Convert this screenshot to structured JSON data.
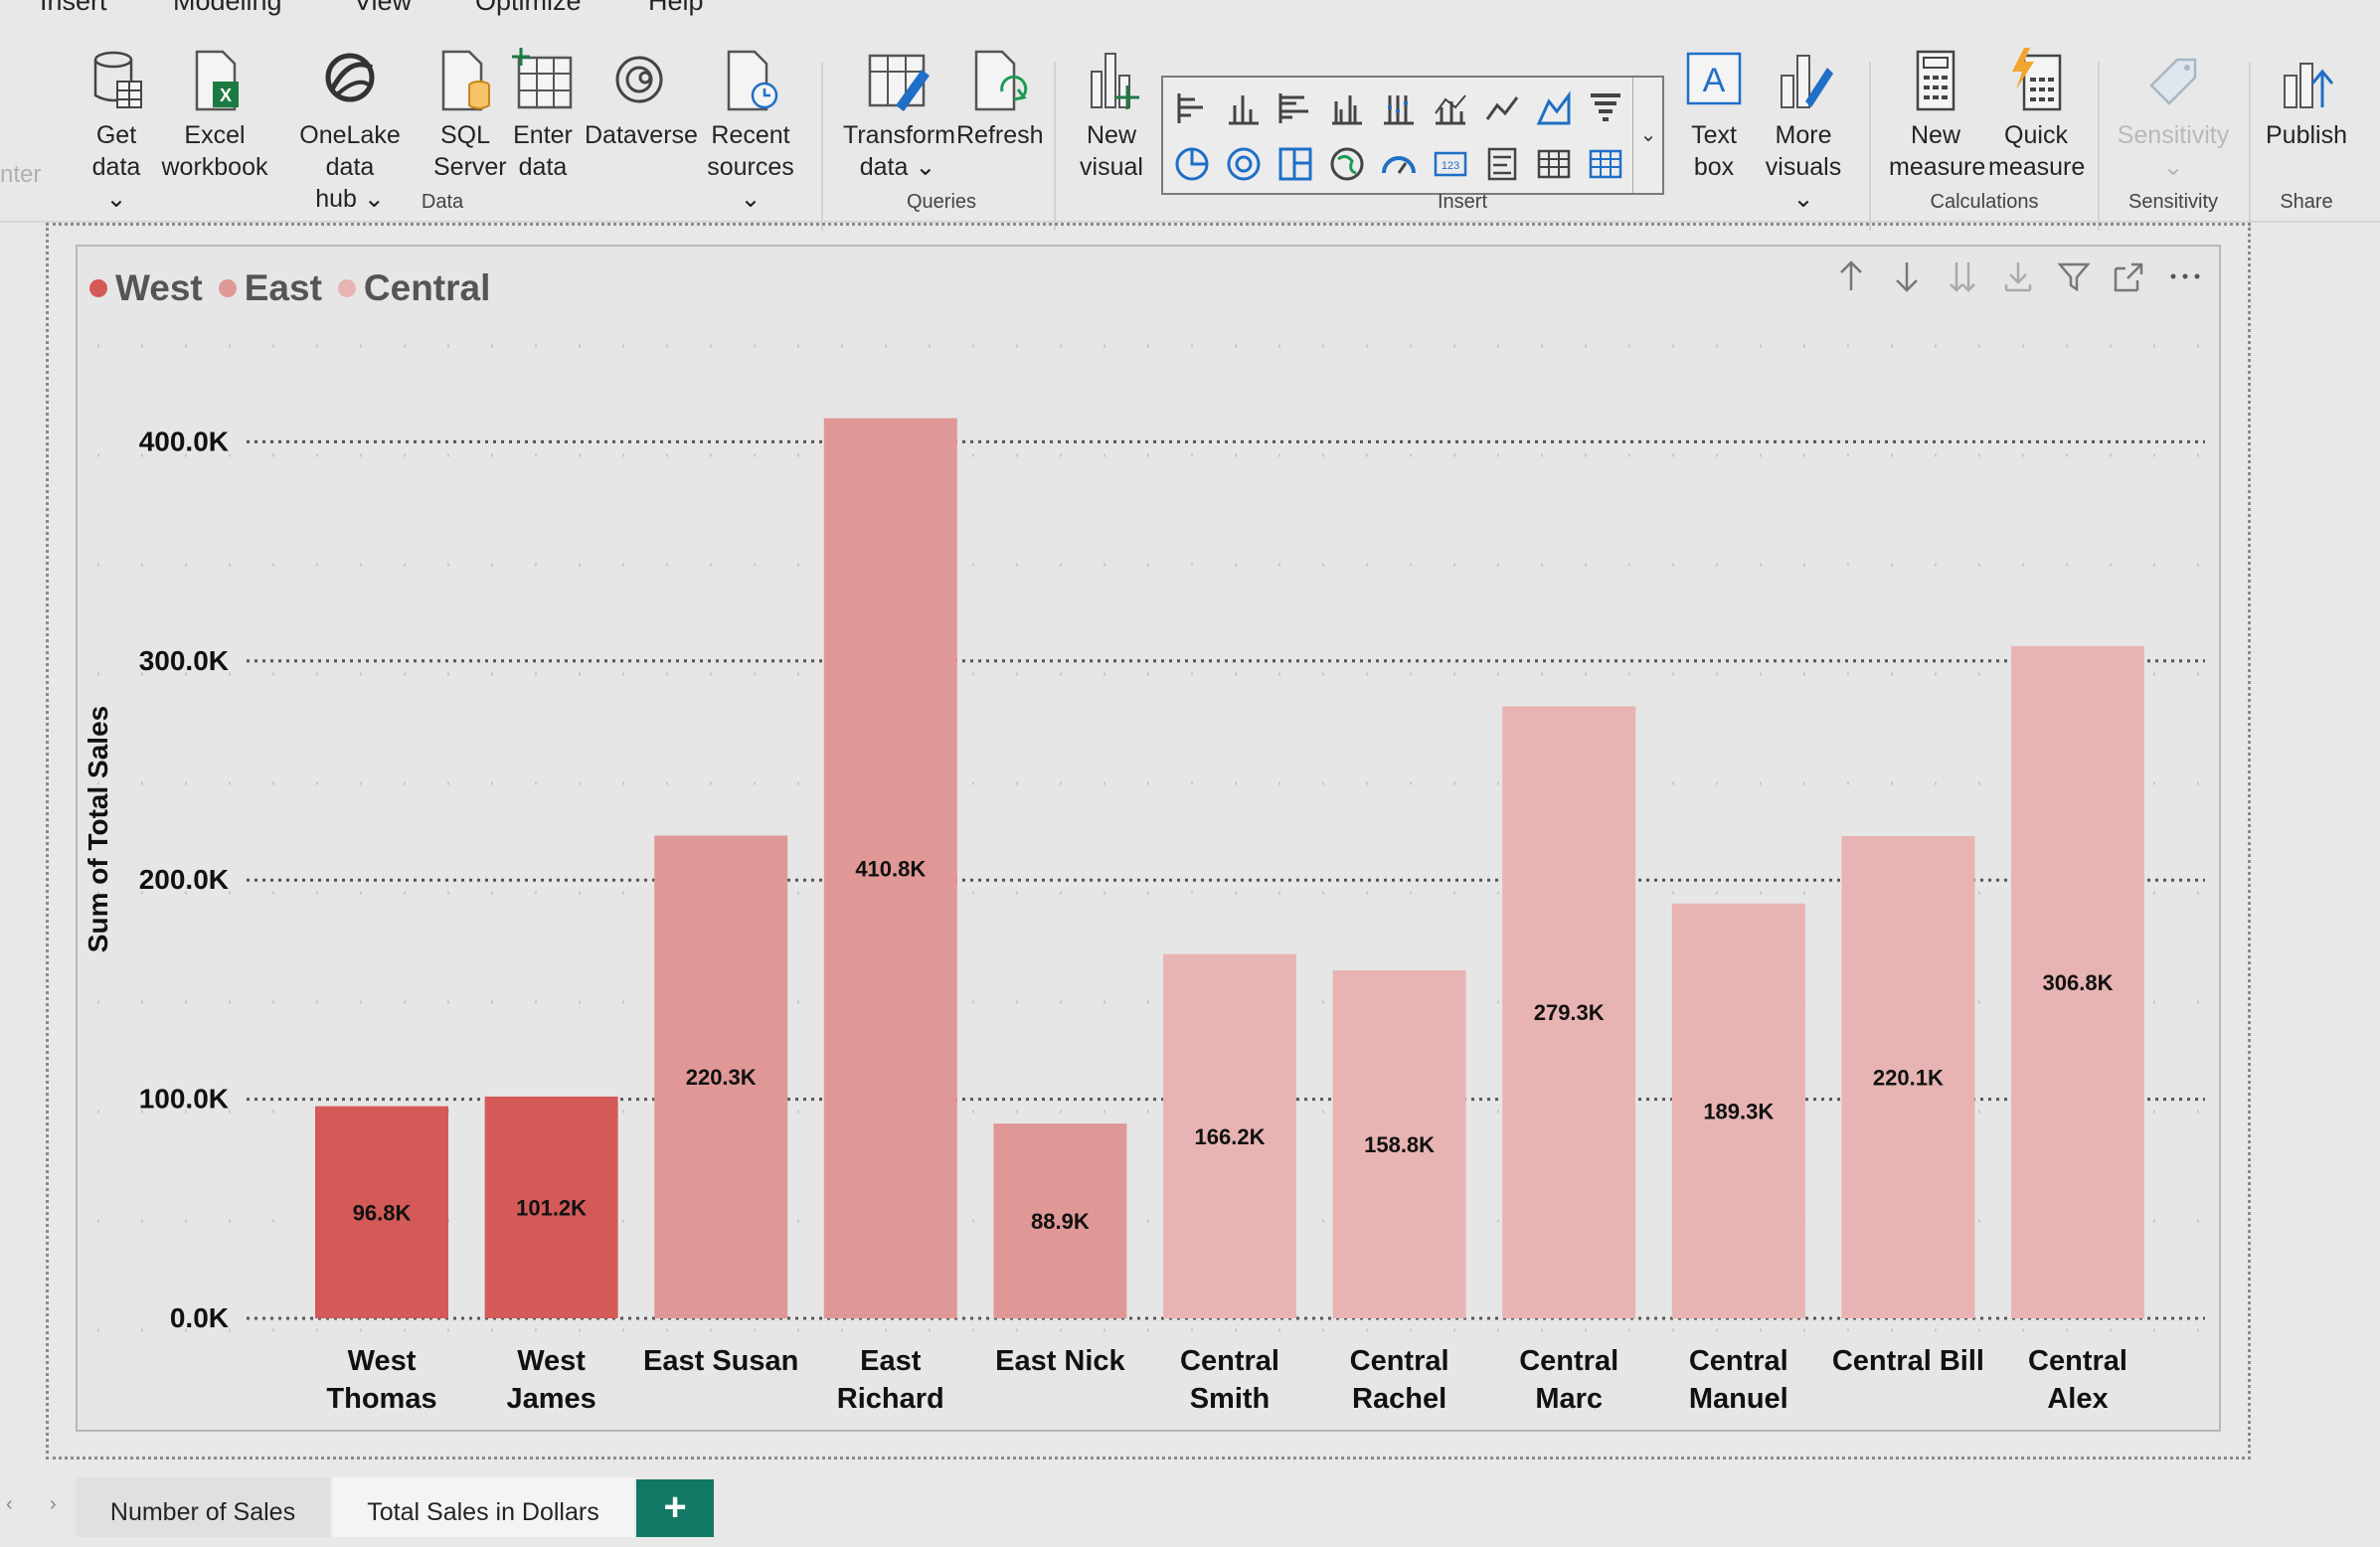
{
  "menu": {
    "items": [
      "Insert",
      "Modeling",
      "View",
      "Optimize",
      "Help"
    ]
  },
  "ribbon": {
    "cut_text": "nter",
    "data_group": {
      "label": "Data",
      "buttons": [
        "Get\ndata ⌄",
        "Excel\nworkbook",
        "OneLake data\nhub ⌄",
        "SQL\nServer",
        "Enter\ndata",
        "Dataverse",
        "Recent\nsources ⌄"
      ]
    },
    "queries_group": {
      "label": "Queries",
      "buttons": [
        "Transform\ndata ⌄",
        "Refresh"
      ]
    },
    "insert_group": {
      "label": "Insert",
      "buttons": [
        "New\nvisual",
        "Text\nbox",
        "More\nvisuals ⌄"
      ]
    },
    "calculations_group": {
      "label": "Calculations",
      "buttons": [
        "New\nmeasure",
        "Quick\nmeasure"
      ]
    },
    "sensitivity_group": {
      "label": "Sensitivity",
      "buttons": [
        "Sensitivity\n⌄"
      ]
    },
    "share_group": {
      "label": "Share",
      "buttons": [
        "Publish"
      ]
    }
  },
  "colors": {
    "west": "#d45a58",
    "east": "#e09896",
    "central": "#e8b4b3",
    "accent": "#117865",
    "blue_icon": "#1f6fc7"
  },
  "legend": [
    "West",
    "East",
    "Central"
  ],
  "chart_data": {
    "type": "bar",
    "title": "",
    "xlabel": "",
    "ylabel": "Sum of Total Sales",
    "ylim": [
      0,
      400000
    ],
    "yticks": [
      "0.0K",
      "100.0K",
      "200.0K",
      "300.0K",
      "400.0K"
    ],
    "legend_position": "top-left",
    "grid": true,
    "bars": [
      {
        "category": "West\nThomas",
        "series": "West",
        "value": 96800,
        "label": "96.8K"
      },
      {
        "category": "West\nJames",
        "series": "West",
        "value": 101200,
        "label": "101.2K"
      },
      {
        "category": "East Susan",
        "series": "East",
        "value": 220300,
        "label": "220.3K"
      },
      {
        "category": "East\nRichard",
        "series": "East",
        "value": 410800,
        "label": "410.8K"
      },
      {
        "category": "East Nick",
        "series": "East",
        "value": 88900,
        "label": "88.9K"
      },
      {
        "category": "Central\nSmith",
        "series": "Central",
        "value": 166200,
        "label": "166.2K"
      },
      {
        "category": "Central\nRachel",
        "series": "Central",
        "value": 158800,
        "label": "158.8K"
      },
      {
        "category": "Central\nMarc",
        "series": "Central",
        "value": 279300,
        "label": "279.3K"
      },
      {
        "category": "Central\nManuel",
        "series": "Central",
        "value": 189300,
        "label": "189.3K"
      },
      {
        "category": "Central Bill",
        "series": "Central",
        "value": 220100,
        "label": "220.1K"
      },
      {
        "category": "Central\nAlex",
        "series": "Central",
        "value": 306800,
        "label": "306.8K"
      }
    ]
  },
  "tabs": {
    "items": [
      "Number of Sales",
      "Total Sales in Dollars"
    ],
    "active": 1,
    "add": "+"
  }
}
